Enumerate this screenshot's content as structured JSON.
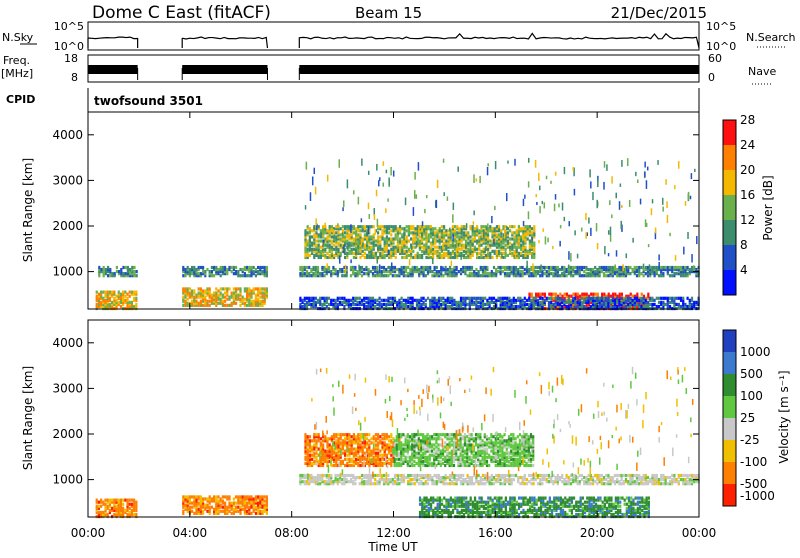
{
  "header": {
    "station": "Dome C East (fitACF)",
    "beam": "Beam 15",
    "date": "21/Dec/2015"
  },
  "noise_panel": {
    "left_label": "N.Sky",
    "right_label": "N.Search",
    "top_tick": "10^5",
    "bottom_tick": "10^0",
    "right_top_tick": "10^5",
    "right_bottom_tick": "10^0"
  },
  "freq_panel": {
    "left_label_1": "Freq.",
    "left_label_2": "[MHz]",
    "right_label": "Nave",
    "left_ticks": [
      "18",
      "8"
    ],
    "right_ticks": [
      "60",
      "0"
    ]
  },
  "cpid_panel": {
    "label": "CPID",
    "value": "twofsound 3501"
  },
  "x_axis": {
    "title": "Time UT",
    "ticks": [
      "00:00",
      "04:00",
      "08:00",
      "12:00",
      "16:00",
      "20:00",
      "00:00"
    ]
  },
  "power_panel": {
    "ylabel": "Slant Range [km]",
    "yticks": [
      "1000",
      "2000",
      "3000",
      "4000"
    ],
    "colorbar_title": "Power [dB]",
    "colorbar_ticks": [
      "4",
      "8",
      "12",
      "16",
      "20",
      "24",
      "28"
    ],
    "colors": [
      "#0010ff",
      "#2050c8",
      "#3c8c6e",
      "#6ab04c",
      "#f5b800",
      "#ff7f00",
      "#ff1010"
    ]
  },
  "velocity_panel": {
    "ylabel": "Slant Range [km]",
    "yticks": [
      "1000",
      "2000",
      "3000",
      "4000"
    ],
    "colorbar_title": "Velocity [m s⁻¹]",
    "colorbar_ticks": [
      "1000",
      "500",
      "100",
      "25",
      "-25",
      "-100",
      "-500",
      "-1000"
    ],
    "colors": [
      "#2040c0",
      "#3c7ad0",
      "#2f8c2f",
      "#60c840",
      "#c8c8c8",
      "#f0c000",
      "#ff7f00",
      "#ff2000"
    ]
  },
  "chart_data": {
    "type": "heatmap",
    "title": "Dome C East (fitACF)",
    "xlabel": "Time UT",
    "ylabel": "Slant Range [km]",
    "xlim": [
      "00:00",
      "24:00"
    ],
    "ylim": [
      180,
      4500
    ],
    "gaps_ut_hours": [
      [
        1.95,
        3.7
      ],
      [
        7.05,
        8.3
      ]
    ],
    "power_bands": [
      {
        "t_start": 0.3,
        "t_end": 1.9,
        "r_min": 180,
        "r_max": 550,
        "power_db": 20
      },
      {
        "t_start": 0.4,
        "t_end": 1.9,
        "r_min": 900,
        "r_max": 1100,
        "power_db": 10
      },
      {
        "t_start": 3.7,
        "t_end": 7.0,
        "r_min": 250,
        "r_max": 650,
        "power_db": 20
      },
      {
        "t_start": 3.7,
        "t_end": 7.0,
        "r_min": 900,
        "r_max": 1100,
        "power_db": 10
      },
      {
        "t_start": 8.3,
        "t_end": 24.0,
        "r_min": 900,
        "r_max": 1100,
        "power_db": 10
      },
      {
        "t_start": 8.5,
        "t_end": 17.5,
        "r_min": 1300,
        "r_max": 2000,
        "power_db": 15
      },
      {
        "t_start": 17.3,
        "t_end": 22.0,
        "r_min": 180,
        "r_max": 500,
        "power_db": 28
      },
      {
        "t_start": 8.3,
        "t_end": 24.0,
        "r_min": 180,
        "r_max": 450,
        "power_db": 6
      }
    ],
    "velocity_bands": [
      {
        "t_start": 0.3,
        "t_end": 1.9,
        "r_min": 180,
        "r_max": 550,
        "velocity_ms": -120
      },
      {
        "t_start": 3.7,
        "t_end": 7.0,
        "r_min": 250,
        "r_max": 650,
        "velocity_ms": -200
      },
      {
        "t_start": 8.3,
        "t_end": 24.0,
        "r_min": 900,
        "r_max": 1100,
        "velocity_ms": 0
      },
      {
        "t_start": 8.5,
        "t_end": 12.0,
        "r_min": 1300,
        "r_max": 2000,
        "velocity_ms": -100
      },
      {
        "t_start": 12.0,
        "t_end": 17.5,
        "r_min": 1300,
        "r_max": 2000,
        "velocity_ms": 60
      },
      {
        "t_start": 13.0,
        "t_end": 22.0,
        "r_min": 180,
        "r_max": 600,
        "velocity_ms": 80
      }
    ]
  }
}
